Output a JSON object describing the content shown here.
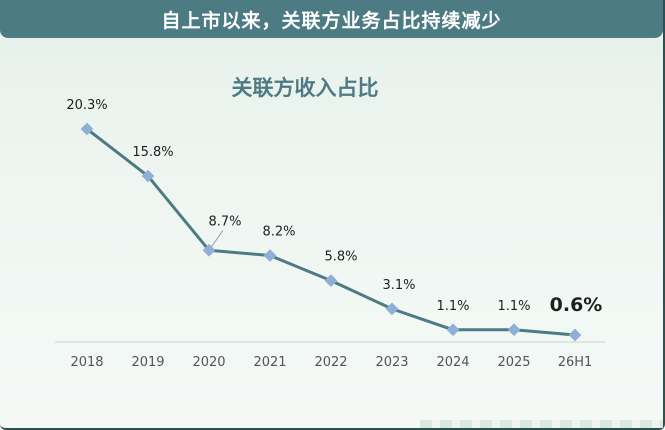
{
  "header": {
    "title": "自上市以来，关联方业务占比持续减少"
  },
  "chart_data": {
    "type": "line",
    "title": "关联方收入占比",
    "categories": [
      "2018",
      "2019",
      "2020",
      "2021",
      "2022",
      "2023",
      "2024",
      "2025",
      "26H1"
    ],
    "series": [
      {
        "values": [
          20.3,
          15.8,
          8.7,
          8.2,
          5.8,
          3.1,
          1.1,
          1.1,
          0.6
        ]
      }
    ],
    "data_labels": [
      "20.3%",
      "15.8%",
      "8.7%",
      "8.2%",
      "5.8%",
      "3.1%",
      "1.1%",
      "1.1%",
      "0.6%"
    ],
    "highlight_last_label": true,
    "ylim": [
      0,
      22
    ],
    "xlabel": "",
    "ylabel": "",
    "grid": false,
    "colors": {
      "line": "#4d7b84",
      "marker": "#8fb0d6",
      "header": "#4d7b84",
      "title": "#4d7b84"
    }
  }
}
